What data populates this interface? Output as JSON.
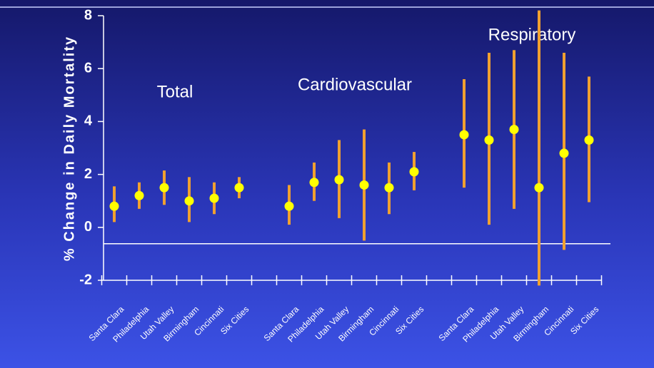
{
  "chart_data": {
    "type": "errorbar",
    "ylabel": "% Change in Daily Mortality",
    "categories": [
      "Santa Clara",
      "Philadelphia",
      "Utah Valley",
      "Birmingham",
      "Cincinnati",
      "Six Cities"
    ],
    "series": [
      {
        "name": "Total",
        "color": "#f0a030",
        "marker_color": "#ffff00",
        "values": [
          0.8,
          1.2,
          1.5,
          1.0,
          1.1,
          1.5
        ],
        "lower": [
          0.2,
          0.7,
          0.85,
          0.2,
          0.5,
          1.1
        ],
        "upper": [
          1.55,
          1.7,
          2.15,
          1.9,
          1.7,
          1.9
        ]
      },
      {
        "name": "Cardiovascular",
        "color": "#f0a030",
        "marker_color": "#ffff00",
        "values": [
          0.8,
          1.7,
          1.8,
          1.6,
          1.5,
          2.1
        ],
        "lower": [
          0.1,
          1.0,
          0.35,
          -0.5,
          0.5,
          1.4
        ],
        "upper": [
          1.6,
          2.45,
          3.3,
          3.7,
          2.45,
          2.85
        ]
      },
      {
        "name": "Respiratory",
        "color": "#f0a030",
        "marker_color": "#ffff00",
        "values": [
          3.5,
          3.3,
          3.7,
          1.5,
          2.8,
          3.3
        ],
        "lower": [
          1.5,
          0.1,
          0.7,
          -2.2,
          -0.85,
          0.95
        ],
        "upper": [
          5.6,
          6.6,
          6.7,
          8.2,
          6.6,
          5.7
        ]
      }
    ],
    "reference_line": -0.62,
    "ylim": [
      -2,
      8
    ],
    "yticks": [
      -2,
      0,
      2,
      4,
      6,
      8
    ]
  }
}
